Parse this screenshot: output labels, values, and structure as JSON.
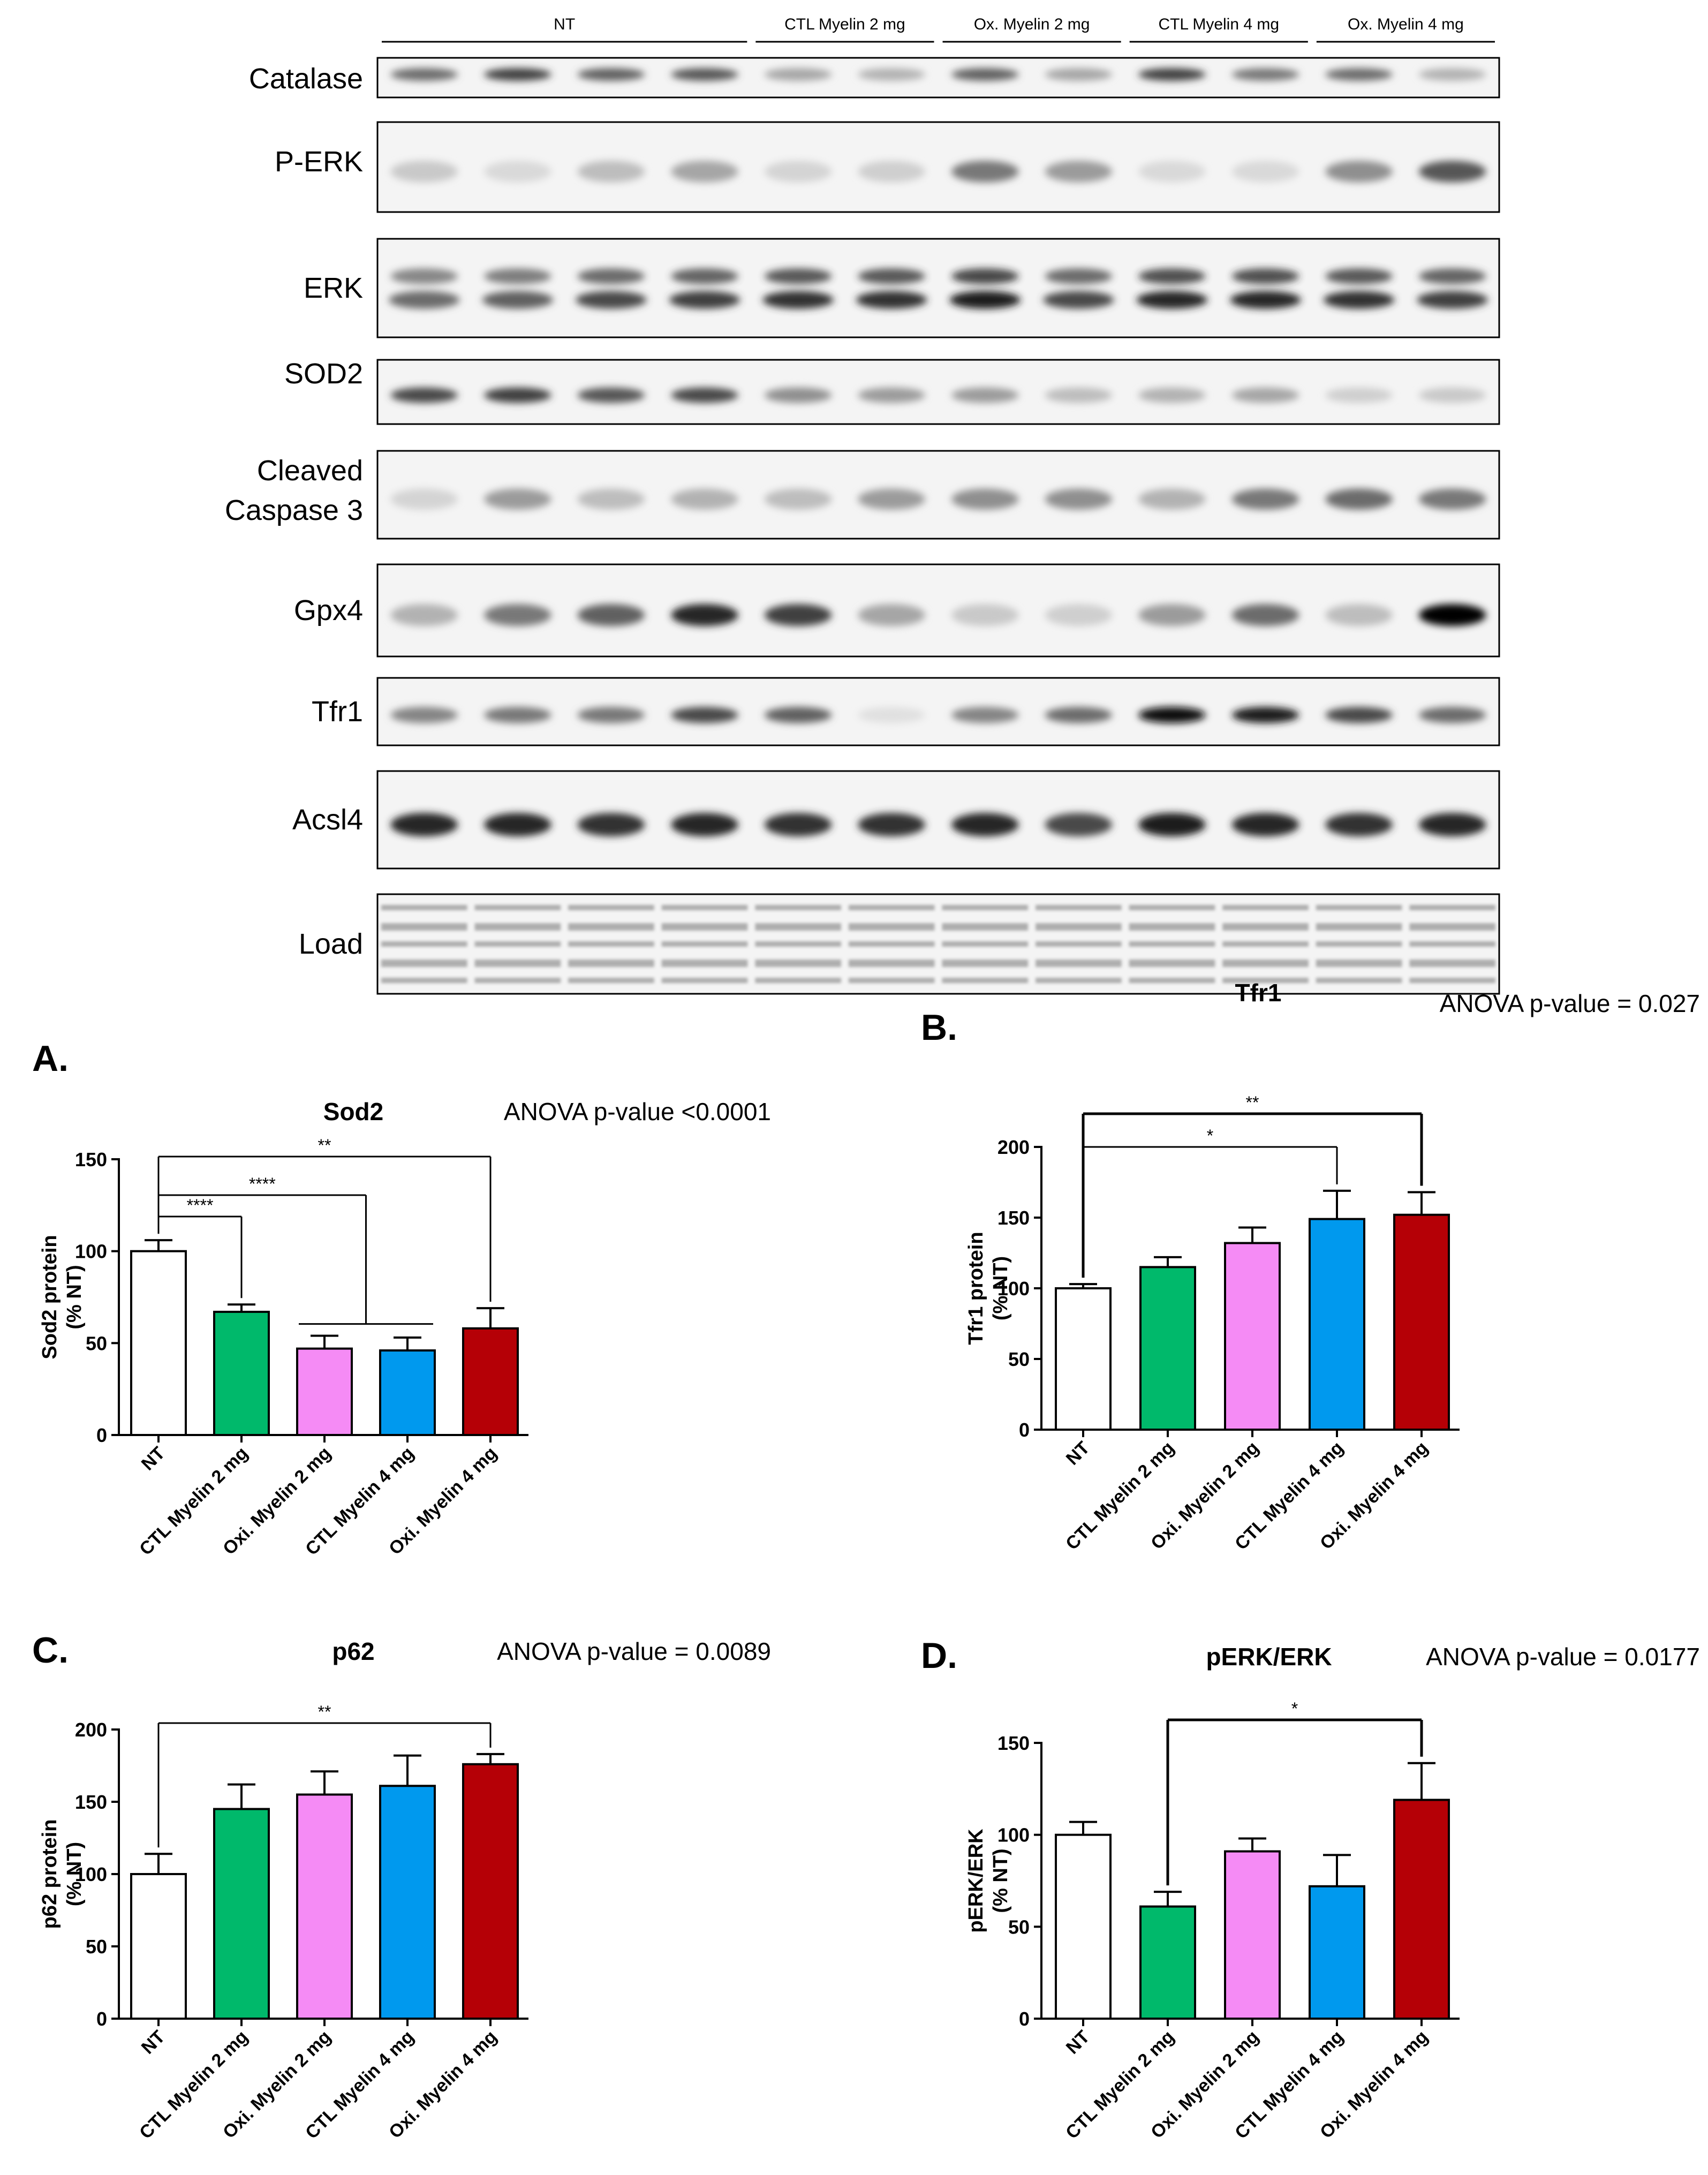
{
  "blot": {
    "groups": [
      {
        "label": "NT",
        "lanes": 4
      },
      {
        "label": "CTL Myelin 2 mg",
        "lanes": 2
      },
      {
        "label": "Ox. Myelin 2 mg",
        "lanes": 2
      },
      {
        "label": "CTL Myelin 4 mg",
        "lanes": 2
      },
      {
        "label": "Ox. Myelin 4 mg",
        "lanes": 2
      }
    ],
    "rows": [
      {
        "label": [
          "Catalase"
        ],
        "style": "thin",
        "intensity": [
          0.55,
          0.75,
          0.6,
          0.65,
          0.3,
          0.25,
          0.6,
          0.3,
          0.75,
          0.5,
          0.55,
          0.25
        ]
      },
      {
        "label": [
          "P-ERK"
        ],
        "style": "single",
        "intensity": [
          0.15,
          0.08,
          0.2,
          0.3,
          0.1,
          0.12,
          0.5,
          0.35,
          0.08,
          0.08,
          0.4,
          0.65
        ]
      },
      {
        "label": [
          "ERK"
        ],
        "style": "double",
        "intensity": [
          0.55,
          0.6,
          0.7,
          0.75,
          0.8,
          0.8,
          0.9,
          0.7,
          0.85,
          0.85,
          0.8,
          0.75
        ]
      },
      {
        "label": [
          "SOD2"
        ],
        "style": "single",
        "intensity": [
          0.7,
          0.75,
          0.65,
          0.7,
          0.4,
          0.35,
          0.35,
          0.2,
          0.25,
          0.3,
          0.12,
          0.15
        ]
      },
      {
        "label": [
          "Cleaved",
          "Caspase 3"
        ],
        "style": "single",
        "intensity": [
          0.1,
          0.35,
          0.2,
          0.25,
          0.2,
          0.35,
          0.4,
          0.4,
          0.25,
          0.5,
          0.55,
          0.5
        ]
      },
      {
        "label": [
          "Gpx4"
        ],
        "style": "single",
        "intensity": [
          0.25,
          0.5,
          0.6,
          0.85,
          0.75,
          0.3,
          0.15,
          0.12,
          0.35,
          0.55,
          0.2,
          1.0
        ]
      },
      {
        "label": [
          "Tfr1"
        ],
        "style": "single",
        "intensity": [
          0.45,
          0.5,
          0.5,
          0.7,
          0.6,
          0.05,
          0.45,
          0.55,
          0.95,
          0.9,
          0.7,
          0.55
        ]
      },
      {
        "label": [
          "Acsl4"
        ],
        "style": "single",
        "intensity": [
          0.85,
          0.85,
          0.8,
          0.85,
          0.8,
          0.8,
          0.85,
          0.7,
          0.9,
          0.85,
          0.8,
          0.85
        ]
      },
      {
        "label": [
          "Load"
        ],
        "style": "load",
        "intensity": [
          0.3,
          0.3,
          0.3,
          0.3,
          0.3,
          0.3,
          0.3,
          0.3,
          0.3,
          0.3,
          0.3,
          0.3
        ]
      }
    ]
  },
  "colors": {
    "NT": "#ffffff",
    "CTL Myelin 2 mg": "#00b96b",
    "Oxi. Myelin 2 mg": "#f58bf5",
    "CTL Myelin 4 mg": "#0099ee",
    "Oxi. Myelin 4 mg": "#b50006"
  },
  "chart_data": [
    {
      "panel": "A.",
      "type": "bar",
      "title": "Sod2",
      "anova": "ANOVA p-value <0.0001",
      "ylabel": [
        "Sod2 protein",
        "(% NT)"
      ],
      "categories": [
        "NT",
        "CTL Myelin 2 mg",
        "Oxi. Myelin 2 mg",
        "CTL Myelin 4 mg",
        "Oxi. Myelin 4 mg"
      ],
      "values": [
        100,
        67,
        47,
        46,
        58
      ],
      "errors": [
        6,
        4,
        7,
        7,
        11
      ],
      "ylim": [
        0,
        150
      ],
      "yticks": [
        0,
        50,
        100,
        150
      ],
      "significance": [
        {
          "from": 0,
          "to": 1,
          "label": "****"
        },
        {
          "from": 0,
          "to": [
            2,
            3
          ],
          "label": "****"
        },
        {
          "from": 0,
          "to": 4,
          "label": "**"
        }
      ]
    },
    {
      "panel": "B.",
      "type": "bar",
      "title": "Tfr1",
      "anova": "ANOVA p-value = 0.027",
      "ylabel": [
        "Tfr1 protein",
        "(% NT)"
      ],
      "categories": [
        "NT",
        "CTL Myelin 2 mg",
        "Oxi. Myelin 2 mg",
        "CTL Myelin 4 mg",
        "Oxi. Myelin 4 mg"
      ],
      "values": [
        100,
        115,
        132,
        149,
        152
      ],
      "errors": [
        3,
        7,
        11,
        20,
        16
      ],
      "ylim": [
        0,
        200
      ],
      "yticks": [
        0,
        50,
        100,
        150,
        200
      ],
      "significance": [
        {
          "from": 0,
          "to": 3,
          "label": "*"
        },
        {
          "from": 0,
          "to": 4,
          "label": "**"
        }
      ]
    },
    {
      "panel": "C.",
      "type": "bar",
      "title": "p62",
      "anova": "ANOVA p-value = 0.0089",
      "ylabel": [
        "p62 protein",
        "(% NT)"
      ],
      "categories": [
        "NT",
        "CTL Myelin 2 mg",
        "Oxi. Myelin 2 mg",
        "CTL Myelin 4 mg",
        "Oxi. Myelin 4 mg"
      ],
      "values": [
        100,
        145,
        155,
        161,
        176
      ],
      "errors": [
        14,
        17,
        16,
        21,
        7
      ],
      "ylim": [
        0,
        200
      ],
      "yticks": [
        0,
        50,
        100,
        150,
        200
      ],
      "significance": [
        {
          "from": 0,
          "to": 4,
          "label": "**"
        }
      ]
    },
    {
      "panel": "D.",
      "type": "bar",
      "title": "pERK/ERK",
      "anova": "ANOVA p-value = 0.0177",
      "ylabel": [
        "pERK/ERK",
        "(% NT)"
      ],
      "categories": [
        "NT",
        "CTL Myelin 2 mg",
        "Oxi. Myelin 2 mg",
        "CTL Myelin 4 mg",
        "Oxi. Myelin 4 mg"
      ],
      "values": [
        100,
        61,
        91,
        72,
        119
      ],
      "errors": [
        7,
        8,
        7,
        17,
        20
      ],
      "ylim": [
        0,
        150
      ],
      "yticks": [
        0,
        50,
        100,
        150
      ],
      "significance": [
        {
          "from": 1,
          "to": 4,
          "label": "*"
        }
      ]
    }
  ]
}
